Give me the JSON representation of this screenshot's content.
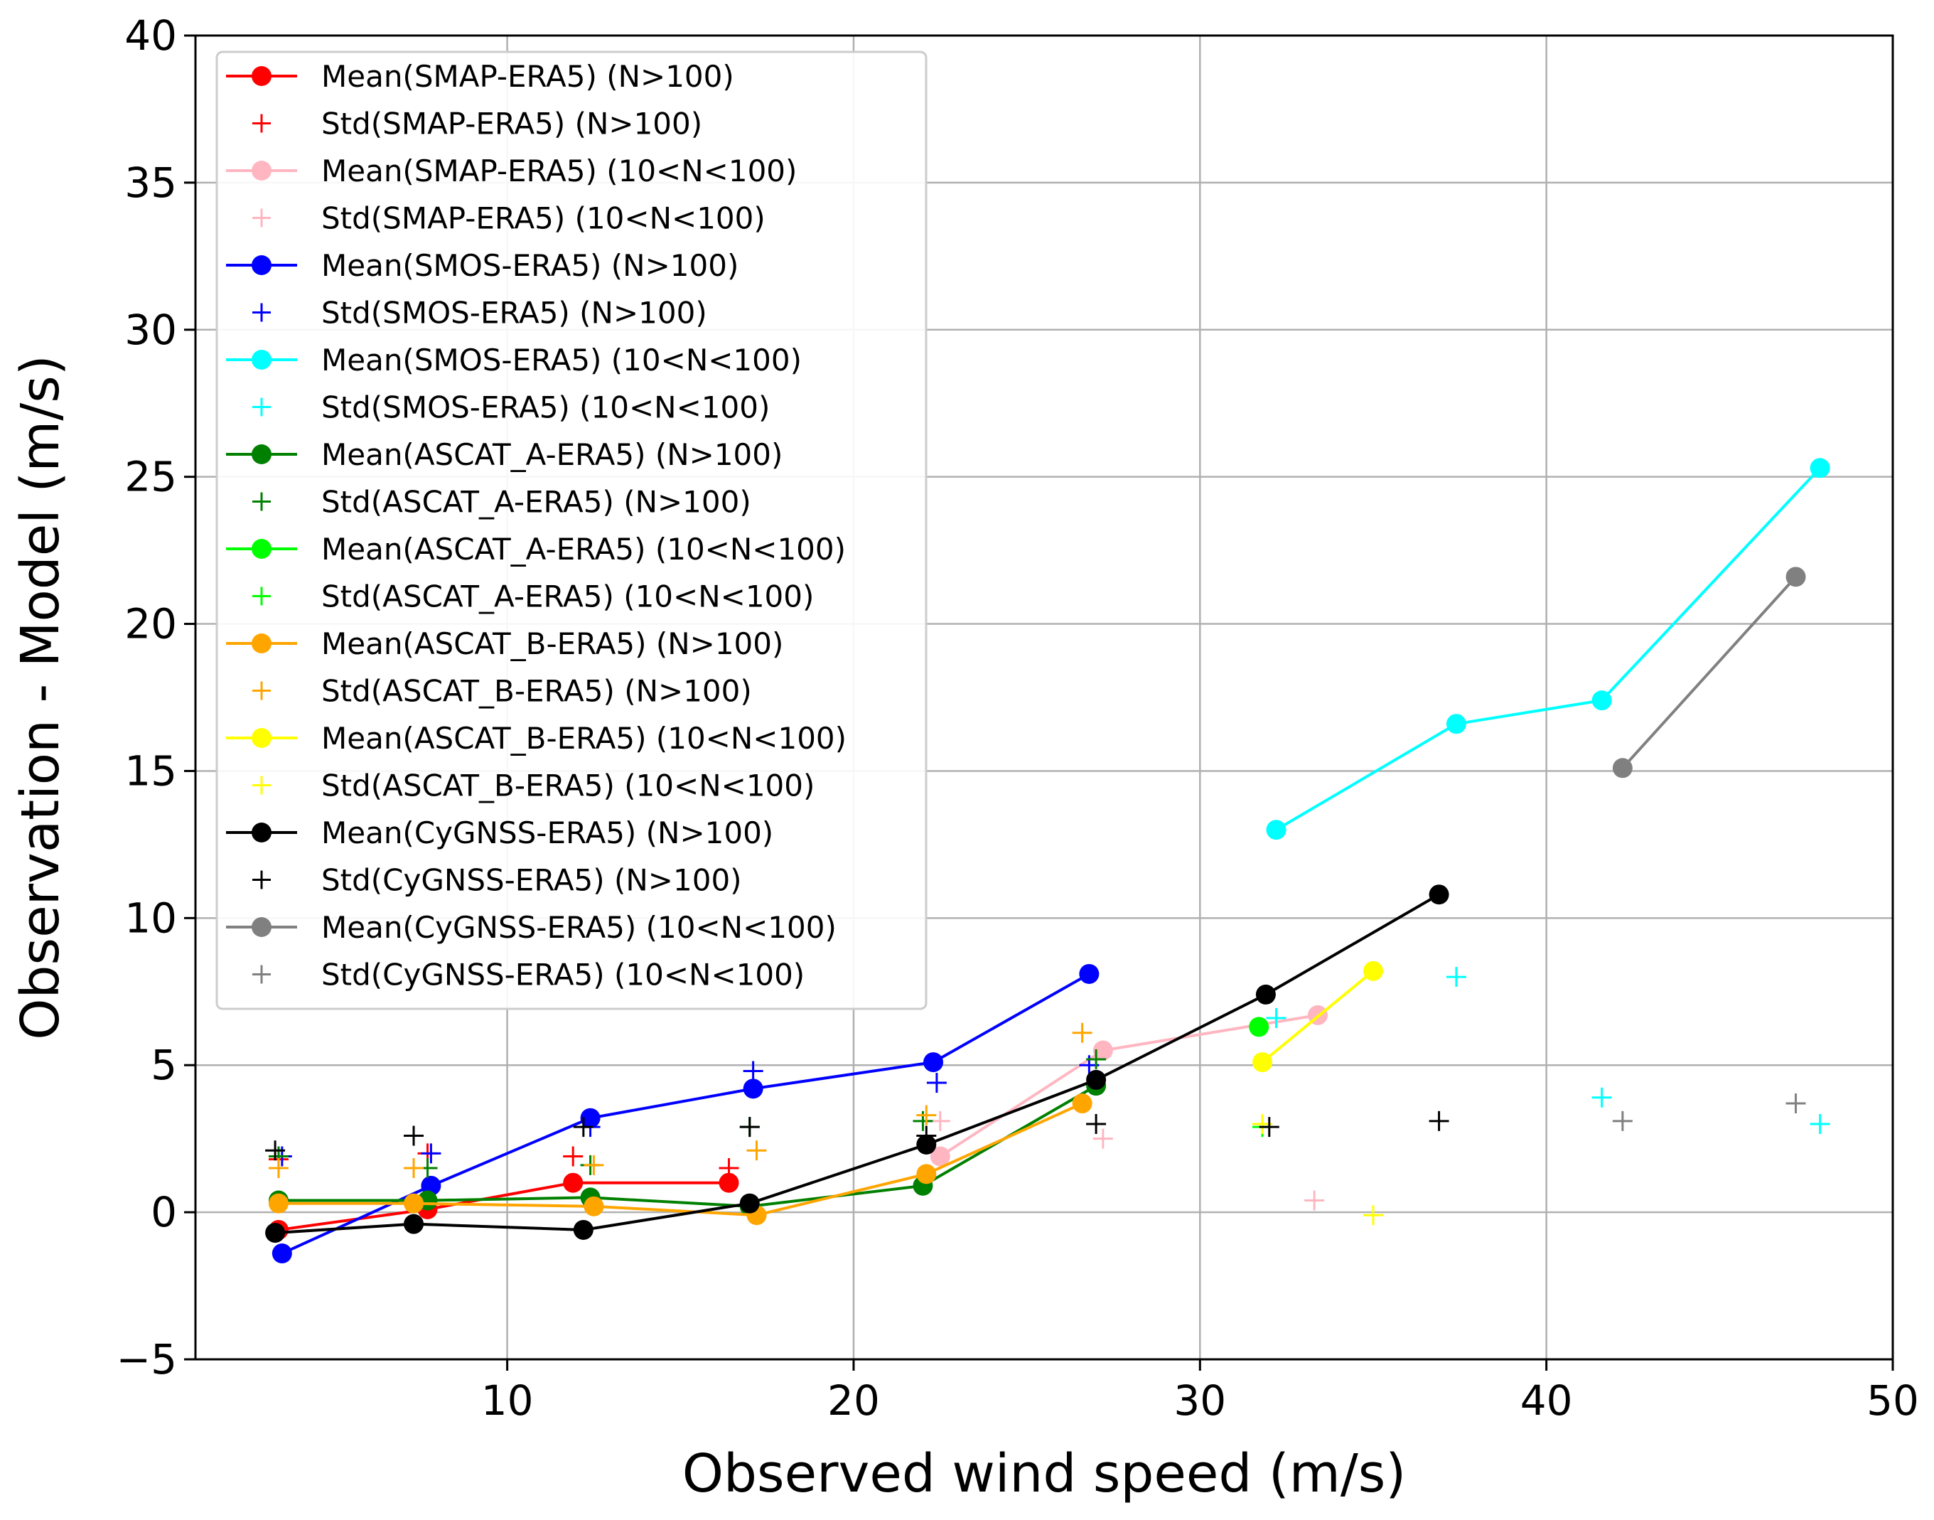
{
  "chart_data": {
    "type": "line",
    "title": "",
    "xlabel": "Observed wind speed (m/s)",
    "ylabel": "Observation - Model (m/s)",
    "xlim": [
      1,
      50
    ],
    "ylim": [
      -5,
      40
    ],
    "xticks": [
      10,
      20,
      30,
      40,
      50
    ],
    "yticks": [
      -5,
      0,
      5,
      10,
      15,
      20,
      25,
      30,
      35,
      40
    ],
    "xtick_labels": [
      "10",
      "20",
      "30",
      "40",
      "50"
    ],
    "ytick_labels": [
      "−5",
      "0",
      "5",
      "10",
      "15",
      "20",
      "25",
      "30",
      "35",
      "40"
    ],
    "grid": true,
    "legend_position": "top-left",
    "series": [
      {
        "name": "Mean(SMAP-ERA5) (N>100)",
        "kind": "mean",
        "color": "#ff0000",
        "x": [
          3.4,
          7.7,
          11.9,
          16.4
        ],
        "y": [
          -0.6,
          0.1,
          1.0,
          1.0
        ]
      },
      {
        "name": "Std(SMAP-ERA5) (N>100)",
        "kind": "std",
        "color": "#ff0000",
        "x": [
          3.4,
          7.7,
          11.9,
          16.4
        ],
        "y": [
          1.8,
          2.0,
          1.9,
          1.5
        ]
      },
      {
        "name": "Mean(SMAP-ERA5) (10<N<100)",
        "kind": "mean",
        "color": "#ffb6c1",
        "x": [
          22.5,
          27.2,
          33.4
        ],
        "y": [
          1.9,
          5.5,
          6.7
        ]
      },
      {
        "name": "Std(SMAP-ERA5) (10<N<100)",
        "kind": "std",
        "color": "#ffb6c1",
        "x": [
          22.5,
          27.2,
          33.3
        ],
        "y": [
          3.1,
          2.5,
          0.4
        ]
      },
      {
        "name": "Mean(SMOS-ERA5) (N>100)",
        "kind": "mean",
        "color": "#0000ff",
        "x": [
          3.5,
          7.8,
          12.4,
          17.1,
          22.3,
          26.8
        ],
        "y": [
          -1.4,
          0.9,
          3.2,
          4.2,
          5.1,
          8.1
        ]
      },
      {
        "name": "Std(SMOS-ERA5) (N>100)",
        "kind": "std",
        "color": "#0000ff",
        "x": [
          3.5,
          7.8,
          12.4,
          17.1,
          22.4,
          26.8
        ],
        "y": [
          1.9,
          2.0,
          2.9,
          4.8,
          4.4,
          5.0
        ]
      },
      {
        "name": "Mean(SMOS-ERA5) (10<N<100)",
        "kind": "mean",
        "color": "#00ffff",
        "x": [
          32.2,
          37.4,
          41.6,
          47.9
        ],
        "y": [
          13.0,
          16.6,
          17.4,
          25.3
        ]
      },
      {
        "name": "Std(SMOS-ERA5) (10<N<100)",
        "kind": "std",
        "color": "#00ffff",
        "x": [
          32.2,
          37.4,
          41.6,
          47.9
        ],
        "y": [
          6.6,
          8.0,
          3.9,
          3.0
        ]
      },
      {
        "name": "Mean(ASCAT_A-ERA5) (N>100)",
        "kind": "mean",
        "color": "#008000",
        "x": [
          3.4,
          7.7,
          12.4,
          17.0,
          22.0,
          27.0
        ],
        "y": [
          0.4,
          0.4,
          0.5,
          0.2,
          0.9,
          4.3
        ]
      },
      {
        "name": "Std(ASCAT_A-ERA5) (N>100)",
        "kind": "std",
        "color": "#008000",
        "x": [
          3.4,
          7.7,
          12.4,
          17.0,
          22.0,
          27.0
        ],
        "y": [
          1.9,
          1.5,
          1.6,
          2.9,
          3.1,
          5.2
        ]
      },
      {
        "name": "Mean(ASCAT_A-ERA5) (10<N<100)",
        "kind": "mean",
        "color": "#00ff00",
        "x": [
          31.7
        ],
        "y": [
          6.3
        ]
      },
      {
        "name": "Std(ASCAT_A-ERA5) (10<N<100)",
        "kind": "std",
        "color": "#00ff00",
        "x": [
          31.8
        ],
        "y": [
          2.9
        ]
      },
      {
        "name": "Mean(ASCAT_B-ERA5) (N>100)",
        "kind": "mean",
        "color": "#ffa500",
        "x": [
          3.4,
          7.3,
          12.5,
          17.2,
          22.1,
          26.6
        ],
        "y": [
          0.3,
          0.3,
          0.2,
          -0.1,
          1.3,
          3.7
        ]
      },
      {
        "name": "Std(ASCAT_B-ERA5) (N>100)",
        "kind": "std",
        "color": "#ffa500",
        "x": [
          3.4,
          7.3,
          12.5,
          17.2,
          22.1,
          26.6
        ],
        "y": [
          1.5,
          1.5,
          1.6,
          2.1,
          3.3,
          6.1
        ]
      },
      {
        "name": "Mean(ASCAT_B-ERA5) (10<N<100)",
        "kind": "mean",
        "color": "#ffff00",
        "x": [
          31.8,
          35.0
        ],
        "y": [
          5.1,
          8.2
        ]
      },
      {
        "name": "Std(ASCAT_B-ERA5) (10<N<100)",
        "kind": "std",
        "color": "#ffff00",
        "x": [
          31.8,
          35.0
        ],
        "y": [
          3.0,
          -0.1
        ]
      },
      {
        "name": "Mean(CyGNSS-ERA5) (N>100)",
        "kind": "mean",
        "color": "#000000",
        "x": [
          3.3,
          7.3,
          12.2,
          17.0,
          22.1,
          27.0,
          31.9,
          36.9
        ],
        "y": [
          -0.7,
          -0.4,
          -0.6,
          0.3,
          2.3,
          4.5,
          7.4,
          10.8
        ]
      },
      {
        "name": "Std(CyGNSS-ERA5) (N>100)",
        "kind": "std",
        "color": "#000000",
        "x": [
          3.3,
          7.3,
          12.2,
          17.0,
          22.1,
          27.0,
          32.0,
          36.9
        ],
        "y": [
          2.1,
          2.6,
          2.9,
          2.9,
          2.6,
          3.0,
          2.9,
          3.1
        ]
      },
      {
        "name": "Mean(CyGNSS-ERA5) (10<N<100)",
        "kind": "mean",
        "color": "#808080",
        "x": [
          42.2,
          47.2
        ],
        "y": [
          15.1,
          21.6
        ]
      },
      {
        "name": "Std(CyGNSS-ERA5) (10<N<100)",
        "kind": "std",
        "color": "#808080",
        "x": [
          42.2,
          47.2
        ],
        "y": [
          3.1,
          3.7
        ]
      }
    ]
  }
}
